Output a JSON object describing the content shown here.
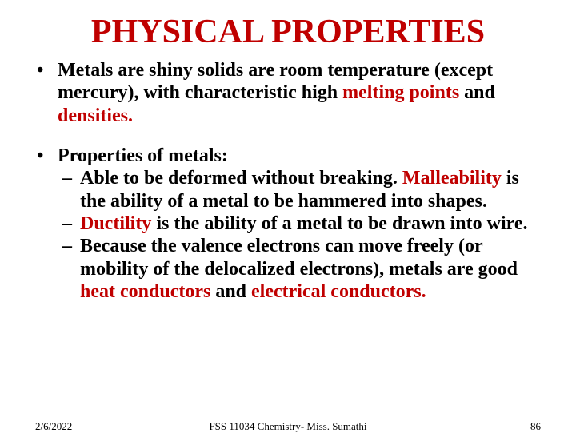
{
  "title": {
    "text": "PHYSICAL PROPERTIES",
    "color": "#c00000",
    "fontsize": 42
  },
  "body": {
    "fontsize": 24,
    "text_color": "#000000",
    "highlight_color": "#c00000",
    "bullet1_a": "Metals are shiny solids are room temperature (except mercury), with characteristic high ",
    "bullet1_b": "melting points",
    "bullet1_c": " and ",
    "bullet1_d": "densities.",
    "bullet2": "Properties of metals:",
    "sub1_a": "Able to be deformed without breaking. ",
    "sub1_b": "Malleability",
    "sub1_c": " is the ability of a metal to be hammered into shapes.",
    "sub2_a": "Ductility",
    "sub2_b": " is the ability of a metal to be drawn into wire.",
    "sub3_a": "Because the valence electrons can move freely (or mobility of the delocalized electrons), metals are good ",
    "sub3_b": "heat conductors",
    "sub3_c": " and ",
    "sub3_d": "electrical conductors."
  },
  "footer": {
    "date": "2/6/2022",
    "center": "FSS 11034 Chemistry- Miss. Sumathi",
    "page": "86"
  }
}
